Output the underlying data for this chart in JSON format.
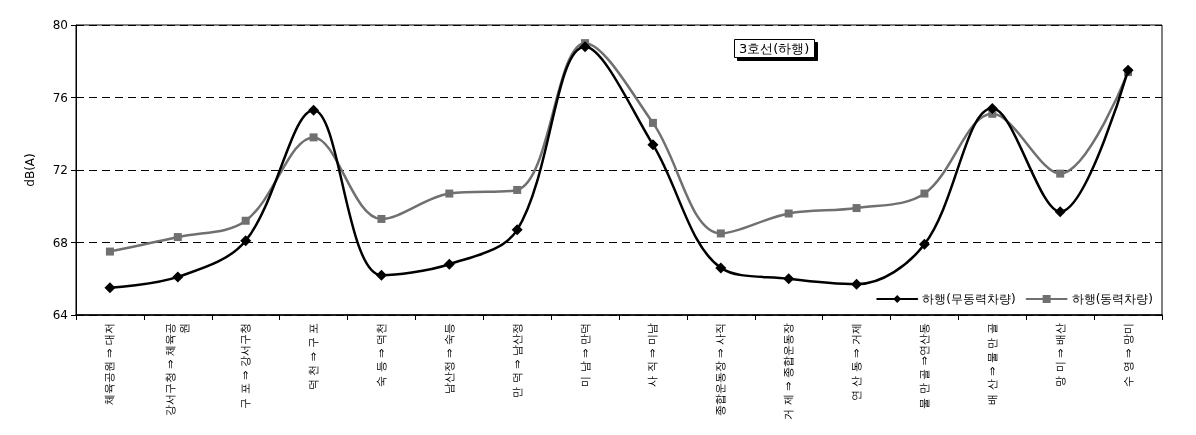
{
  "chart_data": {
    "type": "line",
    "title": "3호선(하행)",
    "ylabel": "dB(A)",
    "categories": [
      "체육공원 ⇒ 대저",
      "강서구청 ⇒ 체육공원",
      "구 포 ⇒ 강서구청",
      "덕 천 ⇒ 구 포",
      "숙 등 ⇒ 덕천",
      "남산정 ⇒ 숙등",
      "만 덕 ⇒ 남산정",
      "미 남 ⇒ 만덕",
      "사 직 ⇒ 미남",
      "종합운동장 ⇒ 사직",
      "거 제 ⇒ 종합운동장",
      "연 산 동 ⇒ 거제",
      "물 만 골 ⇒연산동",
      "배 산 ⇒ 물 만 골",
      "망 미 ⇒ 배산",
      "수 영 ⇒ 망미"
    ],
    "series": [
      {
        "name": "하행(무동력차량)",
        "color": "#000000",
        "marker": "diamond",
        "values": [
          65.5,
          66.1,
          68.1,
          75.3,
          66.2,
          66.8,
          68.7,
          78.8,
          73.4,
          66.6,
          66.0,
          65.7,
          67.9,
          75.4,
          69.7,
          77.5
        ]
      },
      {
        "name": "하행(동력차량)",
        "color": "#707070",
        "marker": "square",
        "values": [
          67.5,
          68.3,
          69.2,
          73.8,
          69.3,
          70.7,
          70.9,
          79.0,
          74.6,
          68.5,
          69.6,
          69.9,
          70.7,
          75.1,
          71.8,
          77.4
        ]
      }
    ],
    "ylim": [
      64,
      80
    ],
    "yticks": [
      64,
      68,
      72,
      76,
      80
    ],
    "grid": "y",
    "legend": "bottom right",
    "line_style": "solid"
  }
}
